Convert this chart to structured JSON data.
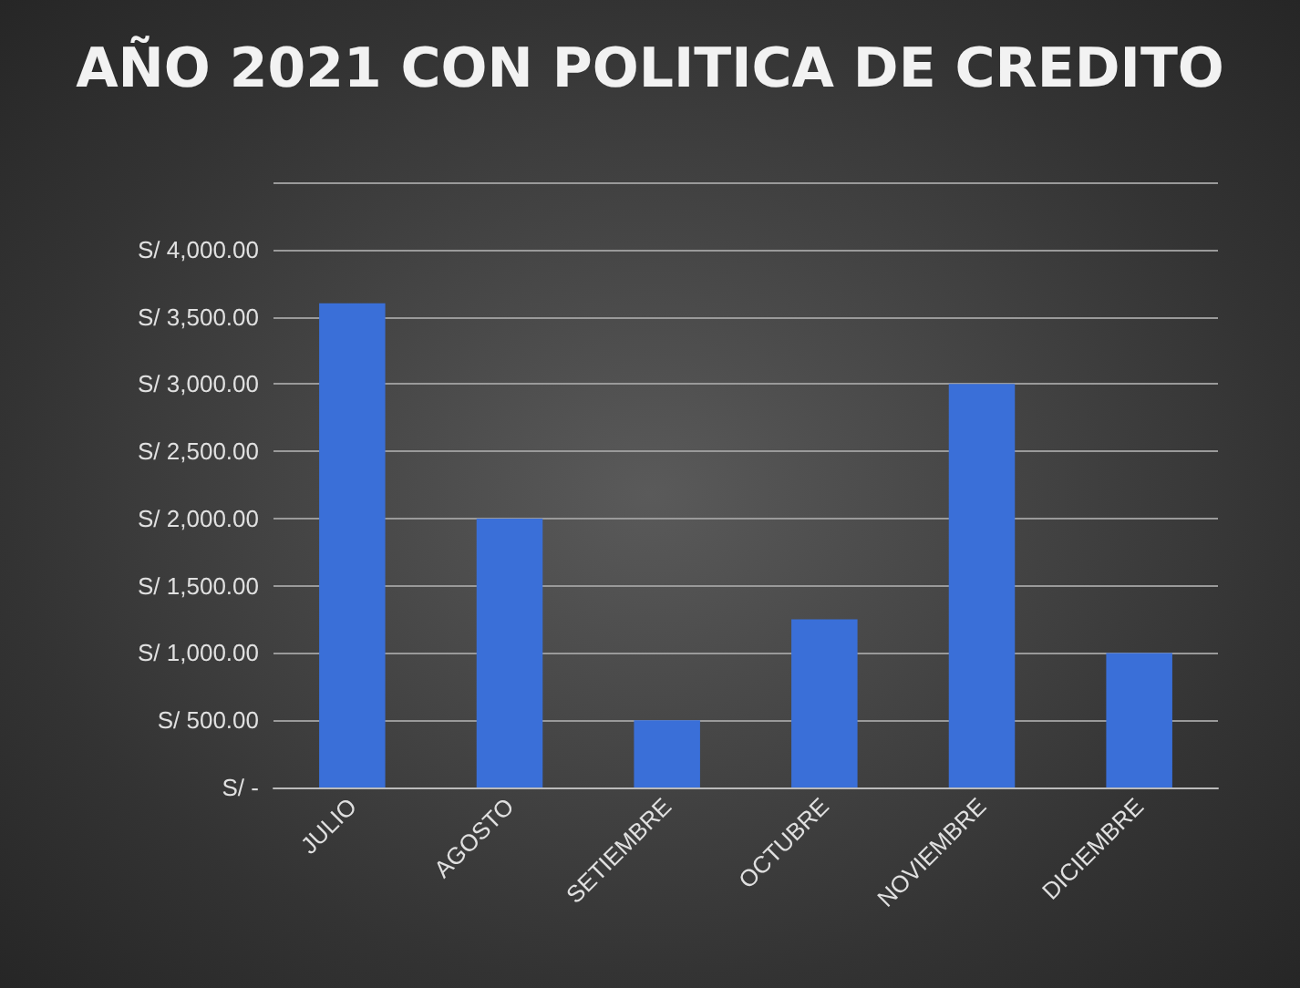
{
  "chart_data": {
    "type": "bar",
    "title": "AÑO 2021 CON POLITICA DE CREDITO",
    "categories": [
      "JULIO",
      "AGOSTO",
      "SETIEMBRE",
      "OCTUBRE",
      "NOVIEMBRE",
      "DICIEMBRE"
    ],
    "values": [
      3600,
      2000,
      500,
      1250,
      3000,
      1000
    ],
    "color": "#3a6fd8",
    "ylim": [
      0,
      4500
    ],
    "yticks": [
      {
        "value": 0,
        "label": "S/ -"
      },
      {
        "value": 500,
        "label": "S/ 500.00"
      },
      {
        "value": 1000,
        "label": "S/ 1,000.00"
      },
      {
        "value": 1500,
        "label": "S/ 1,500.00"
      },
      {
        "value": 2000,
        "label": "S/ 2,000.00"
      },
      {
        "value": 2500,
        "label": "S/ 2,500.00"
      },
      {
        "value": 3000,
        "label": "S/ 3,000.00"
      },
      {
        "value": 3500,
        "label": "S/ 3,500.00"
      },
      {
        "value": 4000,
        "label": "S/ 4,000.00"
      },
      {
        "value": 4500,
        "label": null
      }
    ],
    "grid": "y"
  }
}
